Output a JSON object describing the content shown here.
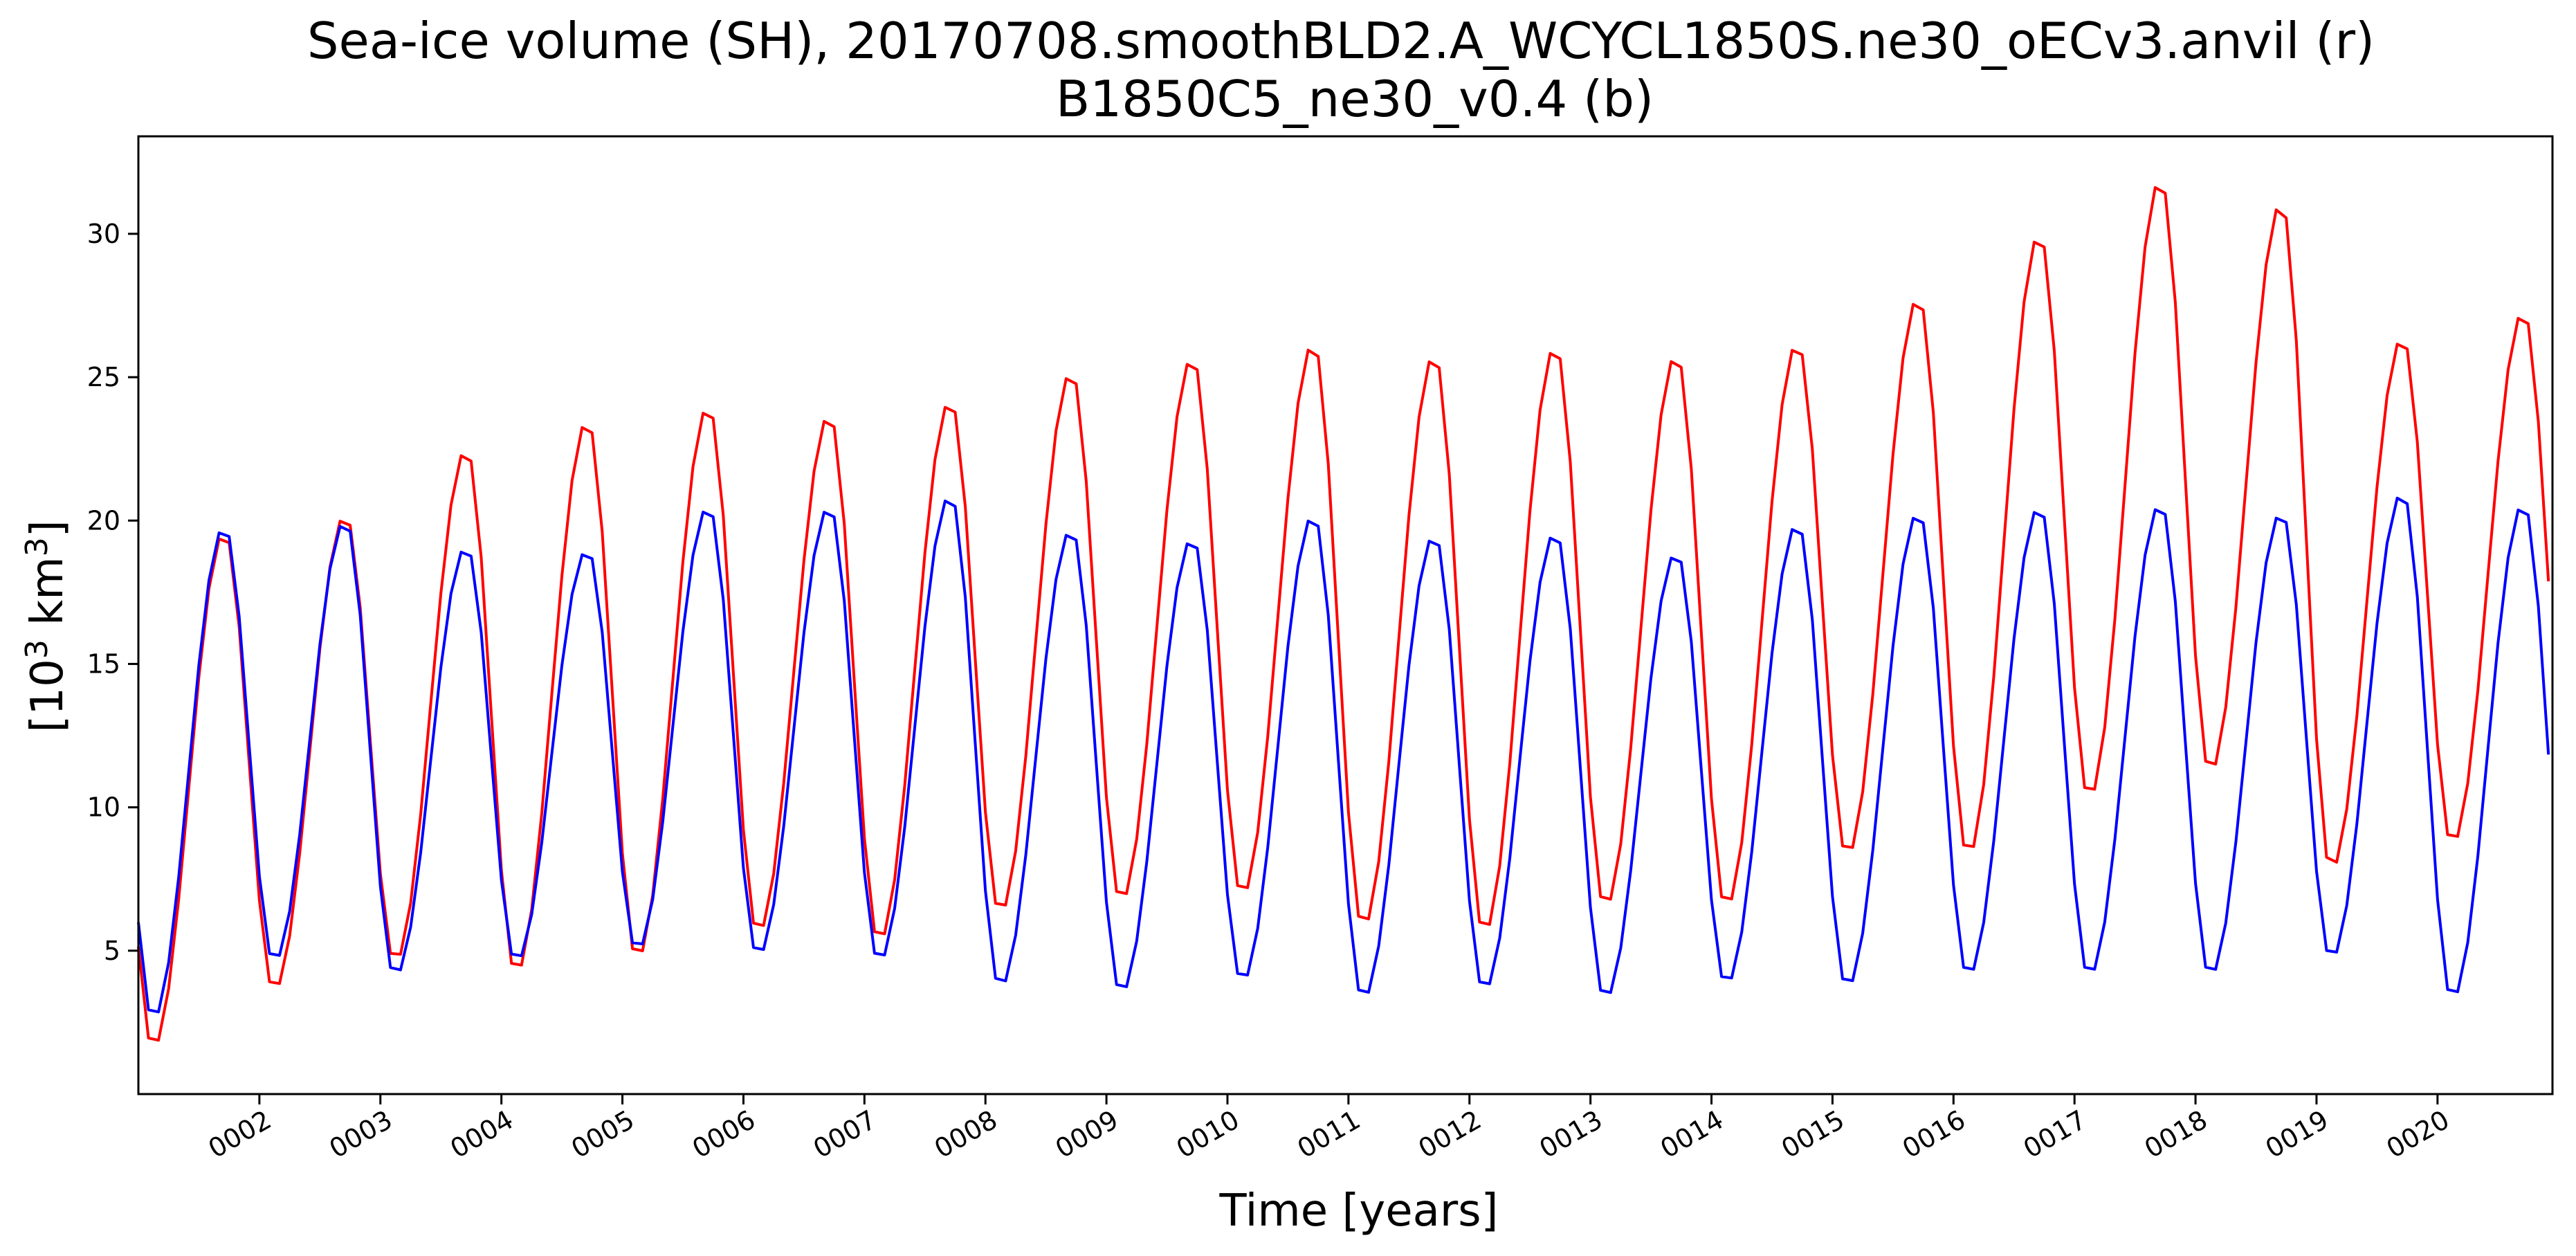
{
  "chart_data": {
    "type": "line",
    "title": "Sea-ice volume (SH), 20170708.smoothBLD2.A_WCYCL1850S.ne30_oECv3.anvil (r)",
    "subtitle": "B1850C5_ne30_v0.4 (b)",
    "xlabel": "Time [years]",
    "ylabel": "[10",
    "ylabel_sup": "3",
    "ylabel_unit": " km",
    "ylabel_unit_sup": "3",
    "ylabel_close": "]",
    "xlim": [
      1.0,
      20.95
    ],
    "ylim": [
      0.0,
      33.4
    ],
    "grid": false,
    "x_ticks": [
      2,
      3,
      4,
      5,
      6,
      7,
      8,
      9,
      10,
      11,
      12,
      13,
      14,
      15,
      16,
      17,
      18,
      19,
      20
    ],
    "x_tick_labels": [
      "0002",
      "0003",
      "0004",
      "0005",
      "0006",
      "0007",
      "0008",
      "0009",
      "0010",
      "0011",
      "0012",
      "0013",
      "0014",
      "0015",
      "0016",
      "0017",
      "0018",
      "0019",
      "0020"
    ],
    "y_ticks": [
      5,
      10,
      15,
      20,
      25,
      30
    ],
    "y_tick_labels": [
      "5",
      "10",
      "15",
      "20",
      "25",
      "30"
    ],
    "series": [
      {
        "color": "#ff0000",
        "minima": [
          1.6,
          3.6,
          4.6,
          4.2,
          4.7,
          5.6,
          5.3,
          6.3,
          6.7,
          6.9,
          5.8,
          5.6,
          6.5,
          6.5,
          8.3,
          8.3,
          10.3,
          11.2,
          7.8,
          8.7
        ],
        "maxima": [
          19.6,
          20.2,
          22.5,
          23.5,
          24.0,
          23.7,
          24.2,
          25.2,
          25.7,
          26.2,
          25.8,
          26.1,
          25.8,
          26.2,
          27.8,
          30.0,
          31.9,
          31.1,
          26.4,
          27.3
        ]
      },
      {
        "color": "#0000ff",
        "minima": [
          2.6,
          4.6,
          4.1,
          4.6,
          5.0,
          4.8,
          4.6,
          3.7,
          3.5,
          3.9,
          3.3,
          3.6,
          3.3,
          3.8,
          3.7,
          4.1,
          4.1,
          4.1,
          4.7,
          3.3
        ],
        "maxima": [
          19.8,
          20.0,
          19.1,
          19.0,
          20.5,
          20.5,
          20.9,
          19.7,
          19.4,
          20.2,
          19.5,
          19.6,
          18.9,
          19.9,
          20.3,
          20.5,
          20.6,
          20.3,
          21.0,
          20.6
        ]
      }
    ]
  }
}
